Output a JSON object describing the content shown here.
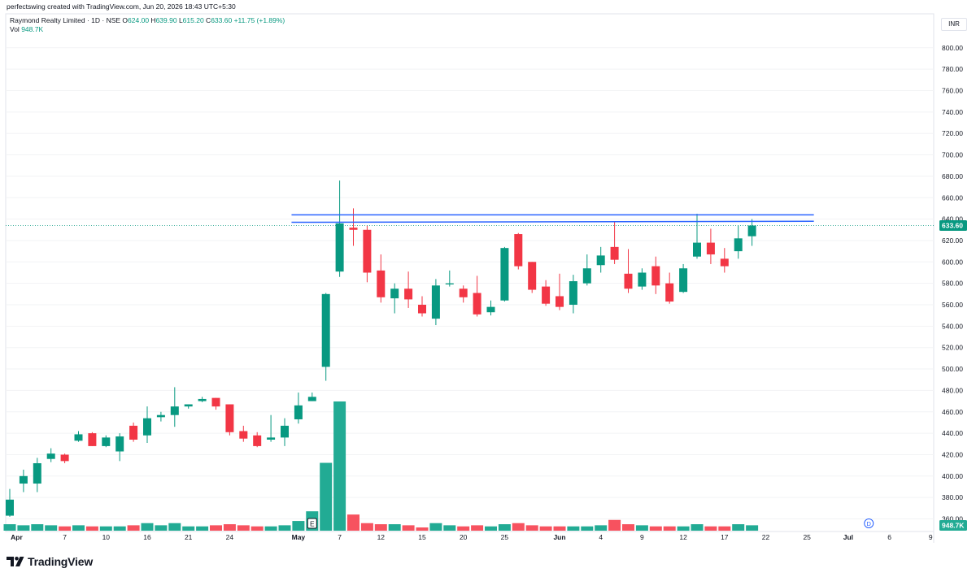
{
  "header": {
    "credit": "perfectswing created with TradingView.com, Jun 20, 2026 18:43 UTC+5:30"
  },
  "legend": {
    "symbol": "Raymond Realty Limited · 1D · NSE",
    "open_label": "O",
    "open": "624.00",
    "high_label": "H",
    "high": "639.90",
    "low_label": "L",
    "low": "615.20",
    "close_label": "C",
    "close": "633.60",
    "change": "+11.75 (+1.89%)",
    "vol_label": "Vol",
    "vol": "948.7K"
  },
  "currency": "INR",
  "brand": {
    "name": "TradingView",
    "logo_icon": "tradingview-logo-icon"
  },
  "colors": {
    "up": "#089981",
    "down": "#f23645",
    "line": "#2962ff",
    "up_vol": "#22ab94",
    "down_vol": "#f7525f"
  },
  "chart_data": {
    "type": "candlestick",
    "price_axis": {
      "ylim": [
        358,
        818
      ],
      "ticks": [
        "360.00",
        "380.00",
        "400.00",
        "420.00",
        "440.00",
        "460.00",
        "480.00",
        "500.00",
        "520.00",
        "540.00",
        "560.00",
        "580.00",
        "600.00",
        "620.00",
        "640.00",
        "660.00",
        "680.00",
        "700.00",
        "720.00",
        "740.00",
        "760.00",
        "780.00",
        "800.00"
      ]
    },
    "last_price_tag": "633.60",
    "last_volume_tag": "948.7K",
    "time_axis": {
      "labels": [
        {
          "text": "Apr",
          "bar": 0.5,
          "bold": true
        },
        {
          "text": "7",
          "bar": 4
        },
        {
          "text": "10",
          "bar": 7
        },
        {
          "text": "16",
          "bar": 10
        },
        {
          "text": "21",
          "bar": 13
        },
        {
          "text": "24",
          "bar": 16
        },
        {
          "text": "May",
          "bar": 21,
          "bold": true
        },
        {
          "text": "7",
          "bar": 24
        },
        {
          "text": "12",
          "bar": 27
        },
        {
          "text": "15",
          "bar": 30
        },
        {
          "text": "20",
          "bar": 33
        },
        {
          "text": "25",
          "bar": 36
        },
        {
          "text": "Jun",
          "bar": 40,
          "bold": true
        },
        {
          "text": "4",
          "bar": 43
        },
        {
          "text": "9",
          "bar": 46
        },
        {
          "text": "12",
          "bar": 49
        },
        {
          "text": "17",
          "bar": 52
        },
        {
          "text": "22",
          "bar": 55
        },
        {
          "text": "25",
          "bar": 58
        },
        {
          "text": "Jul",
          "bar": 61,
          "bold": true
        },
        {
          "text": "6",
          "bar": 64
        },
        {
          "text": "9",
          "bar": 67
        }
      ]
    },
    "candles": [
      {
        "o": 363,
        "h": 388,
        "l": 362,
        "c": 378,
        "v": 6
      },
      {
        "o": 393,
        "h": 406,
        "l": 385,
        "c": 400,
        "v": 5
      },
      {
        "o": 393,
        "h": 417,
        "l": 385,
        "c": 412,
        "v": 6
      },
      {
        "o": 416,
        "h": 426,
        "l": 413,
        "c": 421,
        "v": 5
      },
      {
        "o": 420,
        "h": 421,
        "l": 412,
        "c": 414,
        "v": 4
      },
      {
        "o": 433,
        "h": 442,
        "l": 432,
        "c": 439,
        "v": 5
      },
      {
        "o": 440,
        "h": 441,
        "l": 428,
        "c": 428,
        "v": 4
      },
      {
        "o": 428,
        "h": 438,
        "l": 427,
        "c": 436,
        "v": 4
      },
      {
        "o": 423,
        "h": 440,
        "l": 414,
        "c": 437,
        "v": 4
      },
      {
        "o": 447,
        "h": 450,
        "l": 432,
        "c": 434,
        "v": 5
      },
      {
        "o": 438,
        "h": 465,
        "l": 431,
        "c": 454,
        "v": 7
      },
      {
        "o": 455,
        "h": 460,
        "l": 451,
        "c": 457,
        "v": 5
      },
      {
        "o": 457,
        "h": 483,
        "l": 446,
        "c": 465,
        "v": 7
      },
      {
        "o": 465,
        "h": 467,
        "l": 463,
        "c": 467,
        "v": 4
      },
      {
        "o": 470,
        "h": 474,
        "l": 469,
        "c": 472,
        "v": 4
      },
      {
        "o": 473,
        "h": 473,
        "l": 462,
        "c": 465,
        "v": 5
      },
      {
        "o": 467,
        "h": 467,
        "l": 438,
        "c": 441,
        "v": 6
      },
      {
        "o": 442,
        "h": 447,
        "l": 432,
        "c": 435,
        "v": 5
      },
      {
        "o": 438,
        "h": 441,
        "l": 427,
        "c": 428,
        "v": 4
      },
      {
        "o": 434,
        "h": 457,
        "l": 432,
        "c": 436,
        "v": 4
      },
      {
        "o": 436,
        "h": 454,
        "l": 428,
        "c": 447,
        "v": 5
      },
      {
        "o": 453,
        "h": 478,
        "l": 449,
        "c": 466,
        "v": 9
      },
      {
        "o": 470,
        "h": 478,
        "l": 470,
        "c": 474,
        "v": 18
      },
      {
        "o": 502,
        "h": 571,
        "l": 489,
        "c": 570,
        "v": 63
      },
      {
        "o": 591,
        "h": 676,
        "l": 586,
        "c": 636,
        "v": 120
      },
      {
        "o": 632,
        "h": 650,
        "l": 615,
        "c": 630,
        "v": 15
      },
      {
        "o": 630,
        "h": 634,
        "l": 581,
        "c": 590,
        "v": 7
      },
      {
        "o": 592,
        "h": 607,
        "l": 562,
        "c": 567,
        "v": 6
      },
      {
        "o": 566,
        "h": 580,
        "l": 552,
        "c": 575,
        "v": 6
      },
      {
        "o": 575,
        "h": 591,
        "l": 557,
        "c": 565,
        "v": 5
      },
      {
        "o": 560,
        "h": 568,
        "l": 549,
        "c": 552,
        "v": 3
      },
      {
        "o": 547,
        "h": 584,
        "l": 541,
        "c": 578,
        "v": 7
      },
      {
        "o": 579,
        "h": 592,
        "l": 577,
        "c": 580,
        "v": 5
      },
      {
        "o": 575,
        "h": 578,
        "l": 562,
        "c": 567,
        "v": 4
      },
      {
        "o": 571,
        "h": 587,
        "l": 549,
        "c": 551,
        "v": 5
      },
      {
        "o": 553,
        "h": 564,
        "l": 550,
        "c": 558,
        "v": 4
      },
      {
        "o": 564,
        "h": 614,
        "l": 563,
        "c": 613,
        "v": 6
      },
      {
        "o": 626,
        "h": 627,
        "l": 593,
        "c": 596,
        "v": 7
      },
      {
        "o": 600,
        "h": 600,
        "l": 571,
        "c": 574,
        "v": 5
      },
      {
        "o": 577,
        "h": 583,
        "l": 559,
        "c": 561,
        "v": 4
      },
      {
        "o": 568,
        "h": 589,
        "l": 555,
        "c": 558,
        "v": 4
      },
      {
        "o": 560,
        "h": 588,
        "l": 552,
        "c": 582,
        "v": 4
      },
      {
        "o": 580,
        "h": 607,
        "l": 578,
        "c": 594,
        "v": 4
      },
      {
        "o": 597,
        "h": 614,
        "l": 590,
        "c": 606,
        "v": 5
      },
      {
        "o": 614,
        "h": 638,
        "l": 598,
        "c": 602,
        "v": 10
      },
      {
        "o": 589,
        "h": 612,
        "l": 571,
        "c": 575,
        "v": 6
      },
      {
        "o": 577,
        "h": 594,
        "l": 574,
        "c": 590,
        "v": 5
      },
      {
        "o": 596,
        "h": 605,
        "l": 570,
        "c": 578,
        "v": 4
      },
      {
        "o": 580,
        "h": 590,
        "l": 561,
        "c": 563,
        "v": 4
      },
      {
        "o": 572,
        "h": 598,
        "l": 571,
        "c": 594,
        "v": 4
      },
      {
        "o": 605,
        "h": 645,
        "l": 603,
        "c": 618,
        "v": 6
      },
      {
        "o": 618,
        "h": 631,
        "l": 598,
        "c": 607,
        "v": 4
      },
      {
        "o": 603,
        "h": 613,
        "l": 590,
        "c": 596,
        "v": 4
      },
      {
        "o": 610,
        "h": 634,
        "l": 603,
        "c": 622,
        "v": 6
      },
      {
        "o": 624,
        "h": 640,
        "l": 615,
        "c": 634,
        "v": 5
      }
    ],
    "trendlines": [
      {
        "from_bar": 20.5,
        "from_price": 644,
        "to_bar": 58.5,
        "to_price": 644
      },
      {
        "from_bar": 20.5,
        "from_price": 637,
        "to_bar": 58.5,
        "to_price": 638
      }
    ],
    "markers": [
      {
        "text": "E",
        "bar": 22,
        "type": "earnings"
      },
      {
        "text": "D",
        "bar": 62.5,
        "type": "dividend"
      }
    ]
  }
}
